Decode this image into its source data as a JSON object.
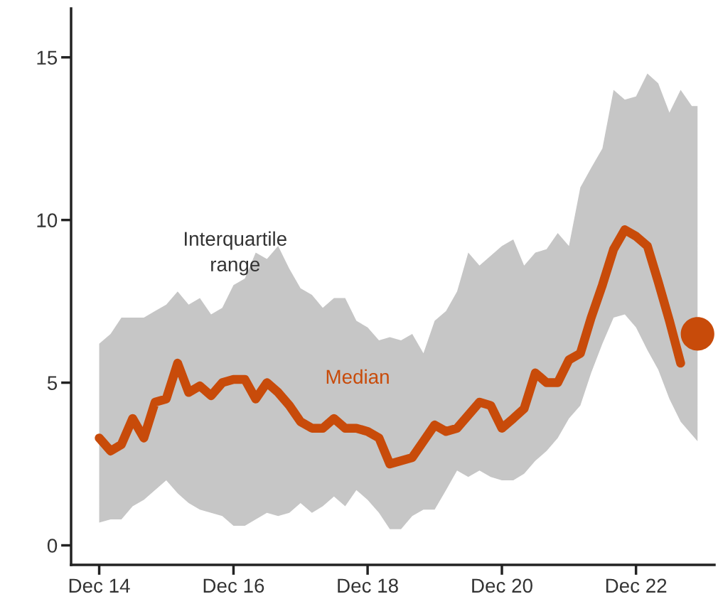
{
  "chart_data": {
    "type": "line",
    "x": [
      "2014-12",
      "2015-02",
      "2015-04",
      "2015-06",
      "2015-08",
      "2015-10",
      "2015-12",
      "2016-02",
      "2016-04",
      "2016-06",
      "2016-08",
      "2016-10",
      "2016-12",
      "2017-02",
      "2017-04",
      "2017-06",
      "2017-08",
      "2017-10",
      "2017-12",
      "2018-02",
      "2018-04",
      "2018-06",
      "2018-08",
      "2018-10",
      "2018-12",
      "2019-02",
      "2019-04",
      "2019-06",
      "2019-08",
      "2019-10",
      "2019-12",
      "2020-02",
      "2020-04",
      "2020-06",
      "2020-08",
      "2020-10",
      "2020-12",
      "2021-02",
      "2021-04",
      "2021-06",
      "2021-08",
      "2021-10",
      "2021-12",
      "2022-02",
      "2022-04",
      "2022-06",
      "2022-08",
      "2022-10",
      "2022-12",
      "2023-02",
      "2023-04",
      "2023-06",
      "2023-08",
      "2023-10",
      "2023-11"
    ],
    "series": [
      {
        "name": "Median",
        "color": "#c84b0a",
        "values": [
          3.3,
          2.9,
          3.1,
          3.9,
          3.3,
          4.4,
          4.5,
          5.6,
          4.7,
          4.9,
          4.6,
          5.0,
          5.1,
          5.1,
          4.5,
          5.0,
          4.7,
          4.3,
          3.8,
          3.6,
          3.6,
          3.9,
          3.6,
          3.6,
          3.5,
          3.3,
          2.5,
          2.6,
          2.7,
          3.2,
          3.7,
          3.5,
          3.6,
          4.0,
          4.4,
          4.3,
          3.6,
          3.9,
          4.2,
          5.3,
          5.0,
          5.0,
          5.7,
          5.9,
          7.0,
          8.0,
          9.1,
          9.7,
          9.5,
          9.2,
          8.1,
          6.9,
          5.6,
          null,
          null
        ],
        "upper": [
          6.2,
          6.5,
          7.0,
          7.0,
          7.0,
          7.2,
          7.4,
          7.8,
          7.4,
          7.6,
          7.1,
          7.3,
          8.0,
          8.2,
          9.0,
          8.8,
          9.2,
          8.5,
          7.9,
          7.7,
          7.3,
          7.6,
          7.6,
          6.9,
          6.7,
          6.3,
          6.4,
          6.3,
          6.5,
          5.9,
          6.9,
          7.2,
          7.8,
          9.0,
          8.6,
          8.9,
          9.2,
          9.4,
          8.6,
          9.0,
          9.1,
          9.6,
          9.2,
          11.0,
          11.6,
          12.2,
          14.0,
          13.7,
          13.8,
          14.5,
          14.2,
          13.3,
          14.0,
          13.5,
          13.5
        ],
        "lower": [
          0.7,
          0.8,
          0.8,
          1.2,
          1.4,
          1.7,
          2.0,
          1.6,
          1.3,
          1.1,
          1.0,
          0.9,
          0.6,
          0.6,
          0.8,
          1.0,
          0.9,
          1.0,
          1.3,
          1.0,
          1.2,
          1.5,
          1.2,
          1.7,
          1.4,
          1.0,
          0.5,
          0.5,
          0.9,
          1.1,
          1.1,
          1.7,
          2.3,
          2.1,
          2.3,
          2.1,
          2.0,
          2.0,
          2.2,
          2.6,
          2.9,
          3.3,
          3.9,
          4.3,
          5.3,
          6.2,
          7.0,
          7.1,
          6.7,
          6.0,
          5.4,
          4.5,
          3.8,
          3.4,
          3.2
        ]
      },
      {
        "type": "scatter",
        "marker": "circle",
        "color": "#c84b0a",
        "x": [
          "2023-11"
        ],
        "values": [
          6.5
        ]
      }
    ],
    "annotations": [
      "Interquartile\nrange"
    ],
    "xlim": [
      "2014-07",
      "2024-02"
    ],
    "xticks": [
      {
        "value": "2014-12",
        "label": "Dec 14"
      },
      {
        "value": "2016-12",
        "label": "Dec 16"
      },
      {
        "value": "2018-12",
        "label": "Dec 18"
      },
      {
        "value": "2020-12",
        "label": "Dec 20"
      },
      {
        "value": "2022-12",
        "label": "Dec 22"
      }
    ],
    "ylim": [
      -0.6,
      16.5
    ],
    "yticks": [
      0,
      5,
      10,
      15
    ],
    "grid": false,
    "legend": false
  }
}
